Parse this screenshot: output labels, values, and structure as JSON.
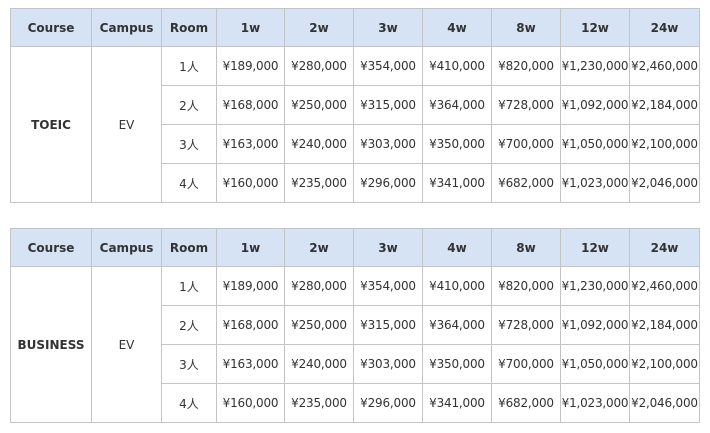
{
  "headers": [
    "Course",
    "Campus",
    "Room",
    "1w",
    "2w",
    "3w",
    "4w",
    "8w",
    "12w",
    "24w"
  ],
  "tables": [
    {
      "course": "TOEIC",
      "campus": "EV",
      "rows": [
        {
          "room": "1人",
          "prices": [
            "¥189,000",
            "¥280,000",
            "¥354,000",
            "¥410,000",
            "¥820,000",
            "¥1,230,000",
            "¥2,460,000"
          ]
        },
        {
          "room": "2人",
          "prices": [
            "¥168,000",
            "¥250,000",
            "¥315,000",
            "¥364,000",
            "¥728,000",
            "¥1,092,000",
            "¥2,184,000"
          ]
        },
        {
          "room": "3人",
          "prices": [
            "¥163,000",
            "¥240,000",
            "¥303,000",
            "¥350,000",
            "¥700,000",
            "¥1,050,000",
            "¥2,100,000"
          ]
        },
        {
          "room": "4人",
          "prices": [
            "¥160,000",
            "¥235,000",
            "¥296,000",
            "¥341,000",
            "¥682,000",
            "¥1,023,000",
            "¥2,046,000"
          ]
        }
      ]
    },
    {
      "course": "BUSINESS",
      "campus": "EV",
      "rows": [
        {
          "room": "1人",
          "prices": [
            "¥189,000",
            "¥280,000",
            "¥354,000",
            "¥410,000",
            "¥820,000",
            "¥1,230,000",
            "¥2,460,000"
          ]
        },
        {
          "room": "2人",
          "prices": [
            "¥168,000",
            "¥250,000",
            "¥315,000",
            "¥364,000",
            "¥728,000",
            "¥1,092,000",
            "¥2,184,000"
          ]
        },
        {
          "room": "3人",
          "prices": [
            "¥163,000",
            "¥240,000",
            "¥303,000",
            "¥350,000",
            "¥700,000",
            "¥1,050,000",
            "¥2,100,000"
          ]
        },
        {
          "room": "4人",
          "prices": [
            "¥160,000",
            "¥235,000",
            "¥296,000",
            "¥341,000",
            "¥682,000",
            "¥1,023,000",
            "¥2,046,000"
          ]
        }
      ]
    }
  ],
  "colors": {
    "header_bg": "#d5e3f5",
    "border": "#c4c4c4",
    "text": "#333333"
  }
}
